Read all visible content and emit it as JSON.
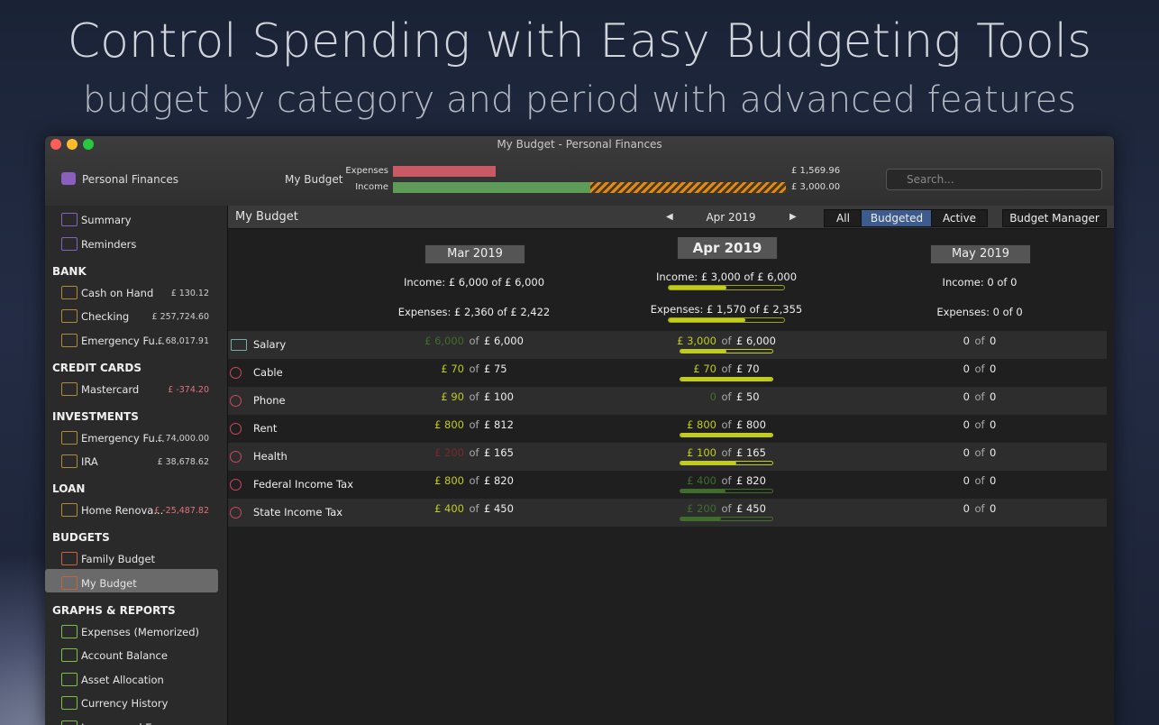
{
  "headline": {
    "title": "Control Spending with Easy Budgeting Tools",
    "subtitle": "budget by category and period with advanced features"
  },
  "window": {
    "title": "My Budget - Personal Finances"
  },
  "toolbar": {
    "account": "Personal Finances",
    "budget": "My Budget",
    "expenses_label": "Expenses",
    "expenses_amount": "£ 1,569.96",
    "income_label": "Income",
    "income_amount": "£ 3,000.00",
    "search_placeholder": "Search..."
  },
  "sidebar": {
    "items": [
      {
        "label": "Summary"
      },
      {
        "label": "Reminders"
      }
    ],
    "sections": [
      {
        "title": "BANK",
        "items": [
          {
            "label": "Cash on Hand",
            "amount": "£ 130.12"
          },
          {
            "label": "Checking",
            "amount": "£ 257,724.60"
          },
          {
            "label": "Emergency Fu...",
            "amount": "£ 68,017.91"
          }
        ]
      },
      {
        "title": "CREDIT CARDS",
        "items": [
          {
            "label": "Mastercard",
            "amount": "£ -374.20"
          }
        ]
      },
      {
        "title": "INVESTMENTS",
        "items": [
          {
            "label": "Emergency Fu...",
            "amount": "£ 74,000.00"
          },
          {
            "label": "IRA",
            "amount": "£ 38,678.62"
          }
        ]
      },
      {
        "title": "LOAN",
        "items": [
          {
            "label": "Home Renova...",
            "amount": "£ -25,487.82"
          }
        ]
      },
      {
        "title": "BUDGETS",
        "items": [
          {
            "label": "Family Budget"
          },
          {
            "label": "My Budget"
          }
        ]
      },
      {
        "title": "GRAPHS & REPORTS",
        "items": [
          {
            "label": "Expenses (Memorized)"
          },
          {
            "label": "Account Balance"
          },
          {
            "label": "Asset Allocation"
          },
          {
            "label": "Currency History"
          },
          {
            "label": "Income and Expenses"
          }
        ]
      }
    ]
  },
  "main": {
    "title": "My Budget",
    "period": "Apr 2019",
    "filters": [
      "All",
      "Budgeted",
      "Active"
    ],
    "selected_filter": "Budgeted",
    "manager": "Budget Manager",
    "of_label": "of",
    "columns": [
      {
        "period": "Mar 2019",
        "income": "Income: £ 6,000 of £ 6,000",
        "expenses": "Expenses: £ 2,360 of £ 2,422"
      },
      {
        "period": "Apr 2019",
        "income": "Income: £ 3,000 of £ 6,000",
        "expenses": "Expenses: £ 1,570 of £ 2,355"
      },
      {
        "period": "May 2019",
        "income": "Income: 0 of 0",
        "expenses": "Expenses: 0 of 0"
      }
    ],
    "rows": [
      {
        "category": "Salary",
        "cells": [
          {
            "actual": "£ 6,000",
            "budget": "£ 6,000",
            "color": "#3f6e2c"
          },
          {
            "actual": "£ 3,000",
            "budget": "£ 6,000",
            "color": "#c2cc1c"
          },
          {
            "actual": "0",
            "budget": "0",
            "color": "#e8e8e8"
          }
        ]
      },
      {
        "category": "Cable",
        "cells": [
          {
            "actual": "£ 70",
            "budget": "£ 75",
            "color": "#c2cc1c"
          },
          {
            "actual": "£ 70",
            "budget": "£ 70",
            "color": "#c2cc1c"
          },
          {
            "actual": "0",
            "budget": "0",
            "color": "#e8e8e8"
          }
        ]
      },
      {
        "category": "Phone",
        "cells": [
          {
            "actual": "£ 90",
            "budget": "£ 100",
            "color": "#c2cc1c"
          },
          {
            "actual": "0",
            "budget": "£ 50",
            "color": "#3f6e2c"
          },
          {
            "actual": "0",
            "budget": "0",
            "color": "#e8e8e8"
          }
        ]
      },
      {
        "category": "Rent",
        "cells": [
          {
            "actual": "£ 800",
            "budget": "£ 812",
            "color": "#c2cc1c"
          },
          {
            "actual": "£ 800",
            "budget": "£ 800",
            "color": "#c2cc1c"
          },
          {
            "actual": "0",
            "budget": "0",
            "color": "#e8e8e8"
          }
        ]
      },
      {
        "category": "Health",
        "cells": [
          {
            "actual": "£ 200",
            "budget": "£ 165",
            "color": "#7a2a28"
          },
          {
            "actual": "£ 100",
            "budget": "£ 165",
            "color": "#c2cc1c"
          },
          {
            "actual": "0",
            "budget": "0",
            "color": "#e8e8e8"
          }
        ]
      },
      {
        "category": "Federal Income Tax",
        "cells": [
          {
            "actual": "£ 800",
            "budget": "£ 820",
            "color": "#c2cc1c"
          },
          {
            "actual": "£ 400",
            "budget": "£ 820",
            "color": "#3f6e2c"
          },
          {
            "actual": "0",
            "budget": "0",
            "color": "#e8e8e8"
          }
        ]
      },
      {
        "category": "State Income Tax",
        "cells": [
          {
            "actual": "£ 400",
            "budget": "£ 450",
            "color": "#c2cc1c"
          },
          {
            "actual": "£ 200",
            "budget": "£ 450",
            "color": "#3f6e2c"
          },
          {
            "actual": "0",
            "budget": "0",
            "color": "#e8e8e8"
          }
        ]
      }
    ]
  }
}
